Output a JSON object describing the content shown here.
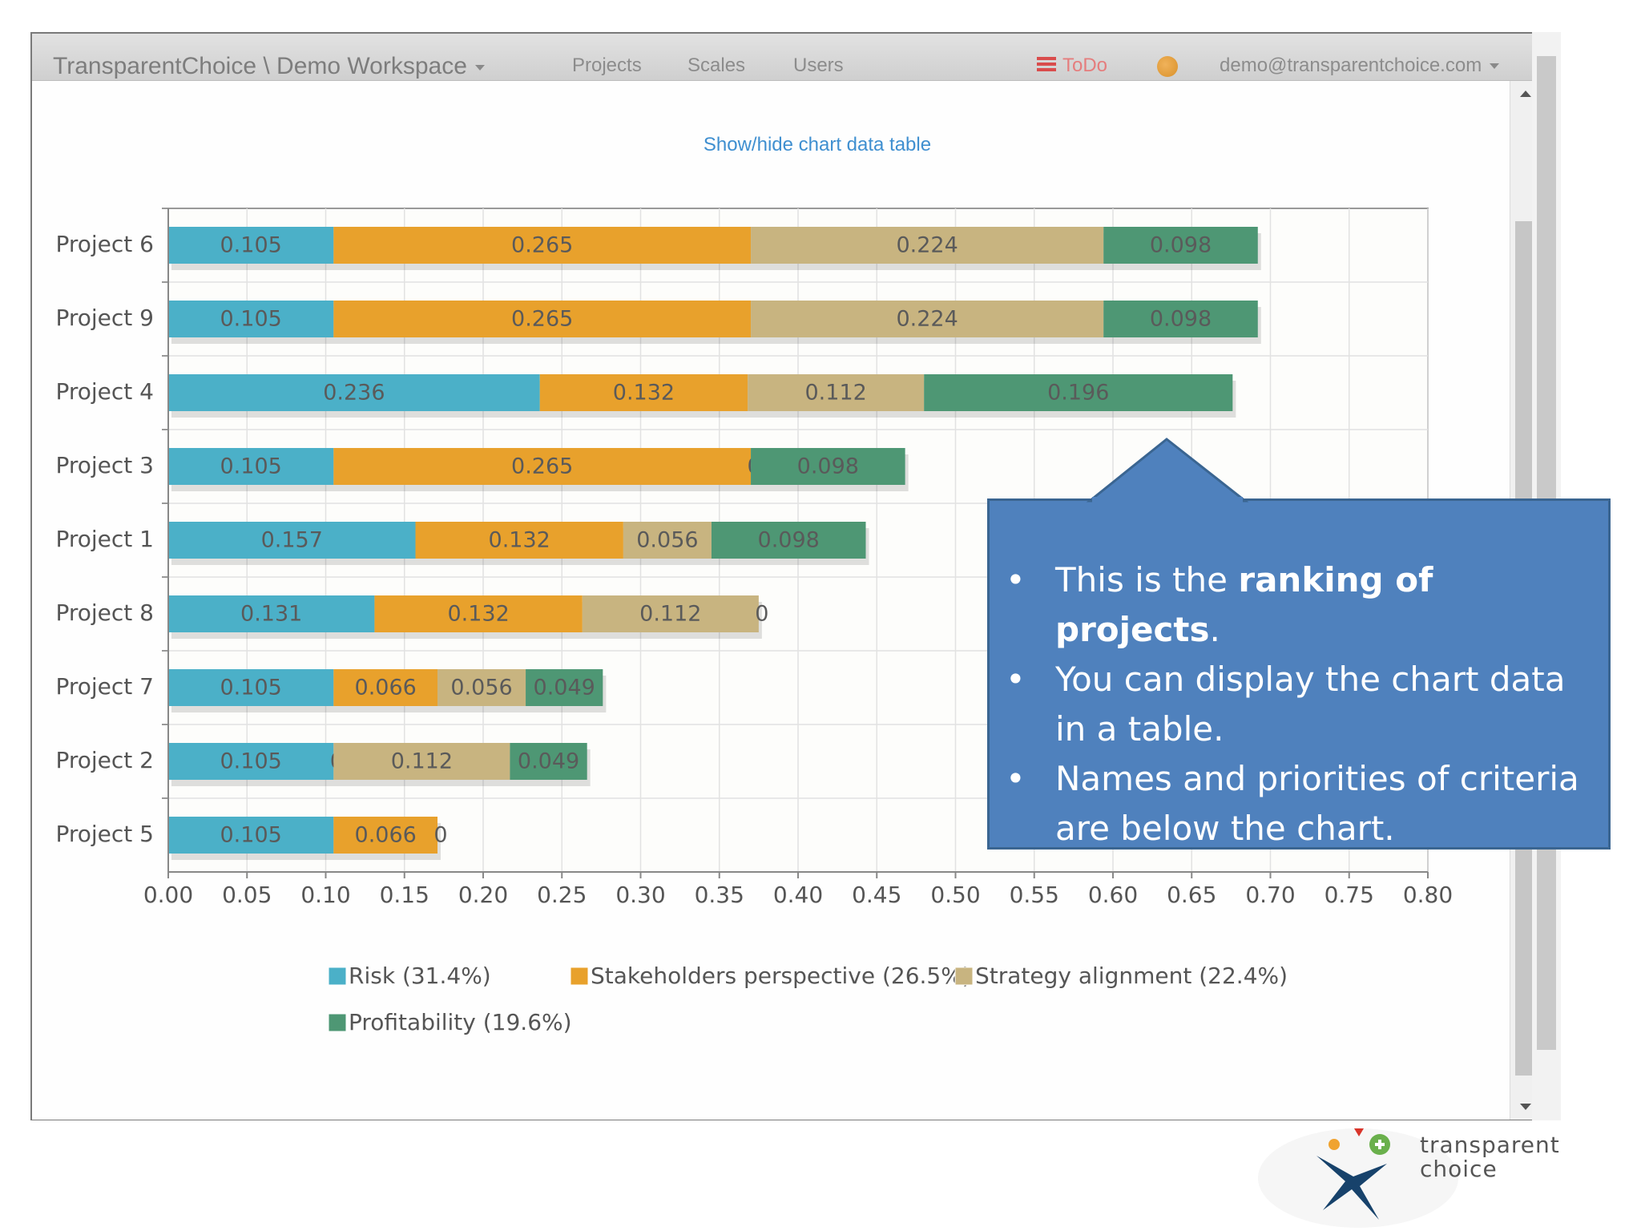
{
  "navbar": {
    "brand": "TransparentChoice \\ Demo Workspace",
    "links": [
      "Projects",
      "Scales",
      "Users"
    ],
    "todo": "ToDo",
    "user": "demo@transparentchoice.com"
  },
  "modal": {
    "show_hide_link": "Show/hide chart data table"
  },
  "colors": {
    "risk": "#4bb0c8",
    "stakeholders": "#e8a12c",
    "strategy": "#c8b480",
    "profitability": "#4e9774"
  },
  "chart_data": {
    "type": "bar",
    "orientation": "horizontal",
    "stacked": true,
    "categories": [
      "Project 6",
      "Project 9",
      "Project 4",
      "Project 3",
      "Project 1",
      "Project 8",
      "Project 7",
      "Project 2",
      "Project 5"
    ],
    "series": [
      {
        "name": "Risk (31.4%)",
        "color": "#4bb0c8",
        "values": [
          0.105,
          0.105,
          0.236,
          0.105,
          0.157,
          0.131,
          0.105,
          0.105,
          0.105
        ]
      },
      {
        "name": "Stakeholders perspective (26.5%)",
        "color": "#e8a12c",
        "values": [
          0.265,
          0.265,
          0.132,
          0.265,
          0.132,
          0.132,
          0.066,
          0,
          0.066
        ]
      },
      {
        "name": "Strategy alignment (22.4%)",
        "color": "#c8b480",
        "values": [
          0.224,
          0.224,
          0.112,
          0,
          0.056,
          0.112,
          0.056,
          0.112,
          0
        ]
      },
      {
        "name": "Profitability (19.6%)",
        "color": "#4e9774",
        "values": [
          0.098,
          0.098,
          0.196,
          0.098,
          0.098,
          0,
          0.049,
          0.049,
          null
        ]
      }
    ],
    "xlim": [
      0,
      0.8
    ],
    "xticks": [
      "0.00",
      "0.05",
      "0.10",
      "0.15",
      "0.20",
      "0.25",
      "0.30",
      "0.35",
      "0.40",
      "0.45",
      "0.50",
      "0.55",
      "0.60",
      "0.65",
      "0.70",
      "0.75",
      "0.80"
    ],
    "grid": true,
    "legend_position": "bottom"
  },
  "callout": {
    "bullets": [
      "This is the ranking of projects.",
      "You can display the chart data in a table.",
      "Names and priorities of criteria are below the chart."
    ]
  },
  "logo": {
    "line1": "transparent",
    "line2": "choice"
  }
}
